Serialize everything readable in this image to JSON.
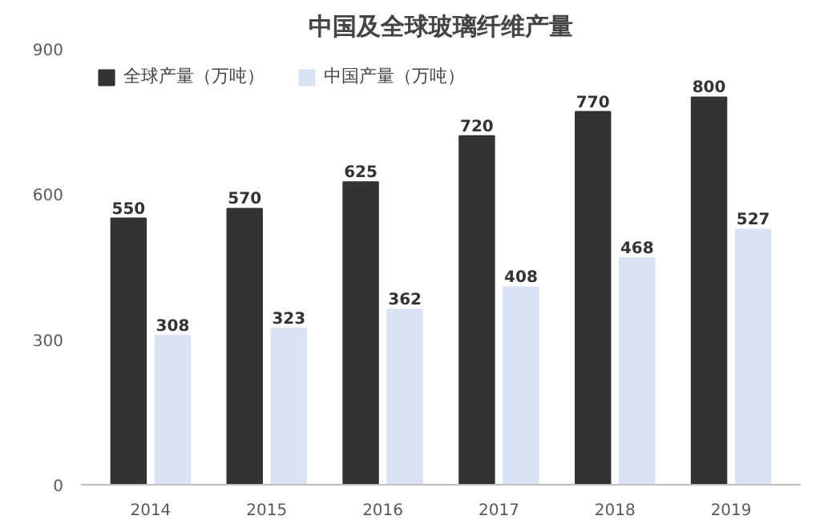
{
  "chart_data": {
    "type": "bar",
    "title": "中国及全球玻璃纤维产量",
    "categories": [
      "2014",
      "2015",
      "2016",
      "2017",
      "2018",
      "2019"
    ],
    "series": [
      {
        "name": "全球产量（万吨）",
        "color": "#333333",
        "values": [
          550,
          570,
          625,
          720,
          770,
          800
        ]
      },
      {
        "name": "中国产量（万吨）",
        "color": "#dae3f3",
        "values": [
          308,
          323,
          362,
          408,
          468,
          527
        ]
      }
    ],
    "ylim": [
      0,
      900
    ],
    "yticks": [
      0,
      300,
      600,
      900
    ],
    "grid": false,
    "legend": "top left",
    "data_labels": true
  }
}
